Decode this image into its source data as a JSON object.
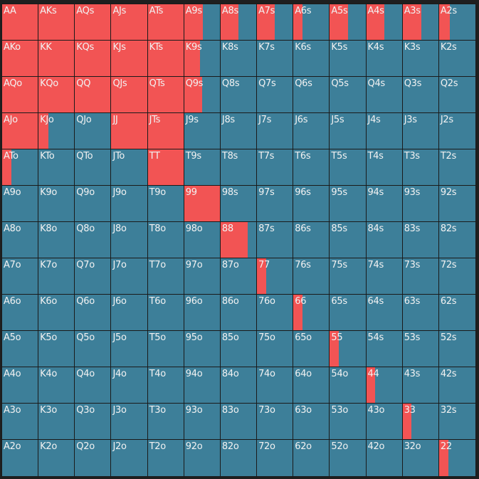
{
  "colors": {
    "action": "#f25454",
    "fold": "#3d7f99",
    "text": "#f2f2f2",
    "border": "#1a1a1a"
  },
  "ranks": [
    "A",
    "K",
    "Q",
    "J",
    "T",
    "9",
    "8",
    "7",
    "6",
    "5",
    "4",
    "3",
    "2"
  ],
  "hands": [
    {
      "label": "AA",
      "freq": 1
    },
    {
      "label": "AKs",
      "freq": 1
    },
    {
      "label": "AQs",
      "freq": 1
    },
    {
      "label": "AJs",
      "freq": 1
    },
    {
      "label": "ATs",
      "freq": 1
    },
    {
      "label": "A9s",
      "freq": 0.52
    },
    {
      "label": "A8s",
      "freq": 0.5
    },
    {
      "label": "A7s",
      "freq": 0.5
    },
    {
      "label": "A6s",
      "freq": 0.25
    },
    {
      "label": "A5s",
      "freq": 0.52
    },
    {
      "label": "A4s",
      "freq": 0.5
    },
    {
      "label": "A3s",
      "freq": 0.52
    },
    {
      "label": "A2s",
      "freq": 0.3
    },
    {
      "label": "AKo",
      "freq": 1
    },
    {
      "label": "KK",
      "freq": 1
    },
    {
      "label": "KQs",
      "freq": 1
    },
    {
      "label": "KJs",
      "freq": 1
    },
    {
      "label": "KTs",
      "freq": 1
    },
    {
      "label": "K9s",
      "freq": 0.44
    },
    {
      "label": "K8s",
      "freq": 0
    },
    {
      "label": "K7s",
      "freq": 0
    },
    {
      "label": "K6s",
      "freq": 0
    },
    {
      "label": "K5s",
      "freq": 0
    },
    {
      "label": "K4s",
      "freq": 0
    },
    {
      "label": "K3s",
      "freq": 0
    },
    {
      "label": "K2s",
      "freq": 0
    },
    {
      "label": "AQo",
      "freq": 1
    },
    {
      "label": "KQo",
      "freq": 1
    },
    {
      "label": "QQ",
      "freq": 1
    },
    {
      "label": "QJs",
      "freq": 1
    },
    {
      "label": "QTs",
      "freq": 1
    },
    {
      "label": "Q9s",
      "freq": 0.5
    },
    {
      "label": "Q8s",
      "freq": 0
    },
    {
      "label": "Q7s",
      "freq": 0
    },
    {
      "label": "Q6s",
      "freq": 0
    },
    {
      "label": "Q5s",
      "freq": 0
    },
    {
      "label": "Q4s",
      "freq": 0
    },
    {
      "label": "Q3s",
      "freq": 0
    },
    {
      "label": "Q2s",
      "freq": 0
    },
    {
      "label": "AJo",
      "freq": 1
    },
    {
      "label": "KJo",
      "freq": 0.28
    },
    {
      "label": "QJo",
      "freq": 0
    },
    {
      "label": "JJ",
      "freq": 1
    },
    {
      "label": "JTs",
      "freq": 1
    },
    {
      "label": "J9s",
      "freq": 0
    },
    {
      "label": "J8s",
      "freq": 0
    },
    {
      "label": "J7s",
      "freq": 0
    },
    {
      "label": "J6s",
      "freq": 0
    },
    {
      "label": "J5s",
      "freq": 0
    },
    {
      "label": "J4s",
      "freq": 0
    },
    {
      "label": "J3s",
      "freq": 0
    },
    {
      "label": "J2s",
      "freq": 0
    },
    {
      "label": "ATo",
      "freq": 0.25
    },
    {
      "label": "KTo",
      "freq": 0
    },
    {
      "label": "QTo",
      "freq": 0
    },
    {
      "label": "JTo",
      "freq": 0
    },
    {
      "label": "TT",
      "freq": 1
    },
    {
      "label": "T9s",
      "freq": 0
    },
    {
      "label": "T8s",
      "freq": 0
    },
    {
      "label": "T7s",
      "freq": 0
    },
    {
      "label": "T6s",
      "freq": 0
    },
    {
      "label": "T5s",
      "freq": 0
    },
    {
      "label": "T4s",
      "freq": 0
    },
    {
      "label": "T3s",
      "freq": 0
    },
    {
      "label": "T2s",
      "freq": 0
    },
    {
      "label": "A9o",
      "freq": 0
    },
    {
      "label": "K9o",
      "freq": 0
    },
    {
      "label": "Q9o",
      "freq": 0
    },
    {
      "label": "J9o",
      "freq": 0
    },
    {
      "label": "T9o",
      "freq": 0
    },
    {
      "label": "99",
      "freq": 1
    },
    {
      "label": "98s",
      "freq": 0
    },
    {
      "label": "97s",
      "freq": 0
    },
    {
      "label": "96s",
      "freq": 0
    },
    {
      "label": "95s",
      "freq": 0
    },
    {
      "label": "94s",
      "freq": 0
    },
    {
      "label": "93s",
      "freq": 0
    },
    {
      "label": "92s",
      "freq": 0
    },
    {
      "label": "A8o",
      "freq": 0
    },
    {
      "label": "K8o",
      "freq": 0
    },
    {
      "label": "Q8o",
      "freq": 0
    },
    {
      "label": "J8o",
      "freq": 0
    },
    {
      "label": "T8o",
      "freq": 0
    },
    {
      "label": "98o",
      "freq": 0
    },
    {
      "label": "88",
      "freq": 0.75
    },
    {
      "label": "87s",
      "freq": 0
    },
    {
      "label": "86s",
      "freq": 0
    },
    {
      "label": "85s",
      "freq": 0
    },
    {
      "label": "84s",
      "freq": 0
    },
    {
      "label": "83s",
      "freq": 0
    },
    {
      "label": "82s",
      "freq": 0
    },
    {
      "label": "A7o",
      "freq": 0
    },
    {
      "label": "K7o",
      "freq": 0
    },
    {
      "label": "Q7o",
      "freq": 0
    },
    {
      "label": "J7o",
      "freq": 0
    },
    {
      "label": "T7o",
      "freq": 0
    },
    {
      "label": "97o",
      "freq": 0
    },
    {
      "label": "87o",
      "freq": 0
    },
    {
      "label": "77",
      "freq": 0.25
    },
    {
      "label": "76s",
      "freq": 0
    },
    {
      "label": "75s",
      "freq": 0
    },
    {
      "label": "74s",
      "freq": 0
    },
    {
      "label": "73s",
      "freq": 0
    },
    {
      "label": "72s",
      "freq": 0
    },
    {
      "label": "A6o",
      "freq": 0
    },
    {
      "label": "K6o",
      "freq": 0
    },
    {
      "label": "Q6o",
      "freq": 0
    },
    {
      "label": "J6o",
      "freq": 0
    },
    {
      "label": "T6o",
      "freq": 0
    },
    {
      "label": "96o",
      "freq": 0
    },
    {
      "label": "86o",
      "freq": 0
    },
    {
      "label": "76o",
      "freq": 0
    },
    {
      "label": "66",
      "freq": 0.25
    },
    {
      "label": "65s",
      "freq": 0
    },
    {
      "label": "64s",
      "freq": 0
    },
    {
      "label": "63s",
      "freq": 0
    },
    {
      "label": "62s",
      "freq": 0
    },
    {
      "label": "A5o",
      "freq": 0
    },
    {
      "label": "K5o",
      "freq": 0
    },
    {
      "label": "Q5o",
      "freq": 0
    },
    {
      "label": "J5o",
      "freq": 0
    },
    {
      "label": "T5o",
      "freq": 0
    },
    {
      "label": "95o",
      "freq": 0
    },
    {
      "label": "85o",
      "freq": 0
    },
    {
      "label": "75o",
      "freq": 0
    },
    {
      "label": "65o",
      "freq": 0
    },
    {
      "label": "55",
      "freq": 0.25
    },
    {
      "label": "54s",
      "freq": 0
    },
    {
      "label": "53s",
      "freq": 0
    },
    {
      "label": "52s",
      "freq": 0
    },
    {
      "label": "A4o",
      "freq": 0
    },
    {
      "label": "K4o",
      "freq": 0
    },
    {
      "label": "Q4o",
      "freq": 0
    },
    {
      "label": "J4o",
      "freq": 0
    },
    {
      "label": "T4o",
      "freq": 0
    },
    {
      "label": "94o",
      "freq": 0
    },
    {
      "label": "84o",
      "freq": 0
    },
    {
      "label": "74o",
      "freq": 0
    },
    {
      "label": "64o",
      "freq": 0
    },
    {
      "label": "54o",
      "freq": 0
    },
    {
      "label": "44",
      "freq": 0.25
    },
    {
      "label": "43s",
      "freq": 0
    },
    {
      "label": "42s",
      "freq": 0
    },
    {
      "label": "A3o",
      "freq": 0
    },
    {
      "label": "K3o",
      "freq": 0
    },
    {
      "label": "Q3o",
      "freq": 0
    },
    {
      "label": "J3o",
      "freq": 0
    },
    {
      "label": "T3o",
      "freq": 0
    },
    {
      "label": "93o",
      "freq": 0
    },
    {
      "label": "83o",
      "freq": 0
    },
    {
      "label": "73o",
      "freq": 0
    },
    {
      "label": "63o",
      "freq": 0
    },
    {
      "label": "53o",
      "freq": 0
    },
    {
      "label": "43o",
      "freq": 0
    },
    {
      "label": "33",
      "freq": 0.25
    },
    {
      "label": "32s",
      "freq": 0
    },
    {
      "label": "A2o",
      "freq": 0
    },
    {
      "label": "K2o",
      "freq": 0
    },
    {
      "label": "Q2o",
      "freq": 0
    },
    {
      "label": "J2o",
      "freq": 0
    },
    {
      "label": "T2o",
      "freq": 0
    },
    {
      "label": "92o",
      "freq": 0
    },
    {
      "label": "82o",
      "freq": 0
    },
    {
      "label": "72o",
      "freq": 0
    },
    {
      "label": "62o",
      "freq": 0
    },
    {
      "label": "52o",
      "freq": 0
    },
    {
      "label": "42o",
      "freq": 0
    },
    {
      "label": "32o",
      "freq": 0
    },
    {
      "label": "22",
      "freq": 0.25
    }
  ]
}
